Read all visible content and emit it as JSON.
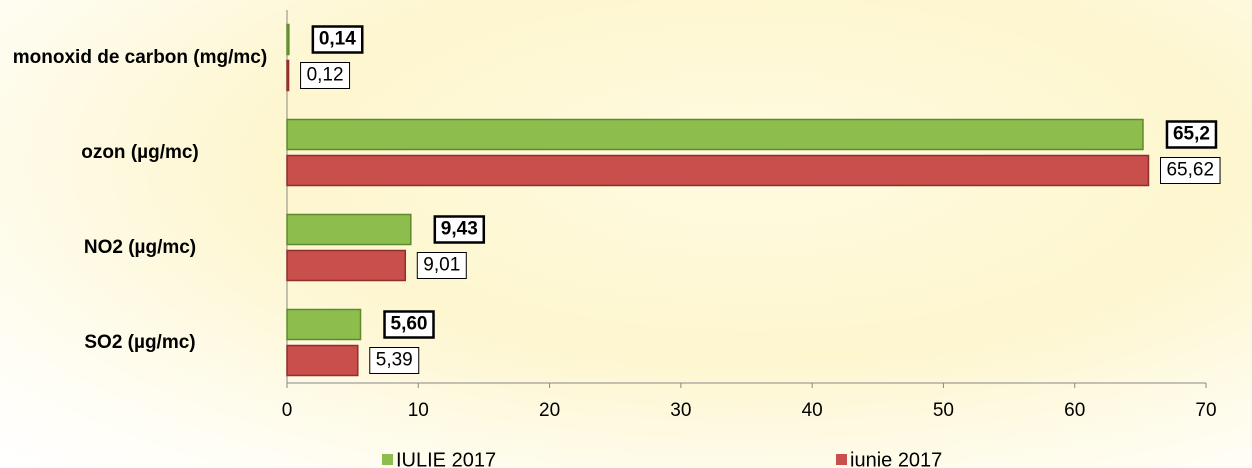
{
  "chart_data": {
    "type": "bar",
    "orientation": "horizontal",
    "categories": [
      "monoxid de carbon (mg/mc)",
      "ozon (µg/mc)",
      "NO2 (µg/mc)",
      "SO2 (µg/mc)"
    ],
    "series": [
      {
        "name": "IULIE 2017",
        "color": "#8dbd4c",
        "values": [
          0.14,
          65.2,
          9.43,
          5.6
        ],
        "value_labels": [
          "0,14",
          "65,2",
          "9,43",
          "5,60"
        ]
      },
      {
        "name": "iunie 2017",
        "color": "#c94f4d",
        "values": [
          0.12,
          65.62,
          9.01,
          5.39
        ],
        "value_labels": [
          "0,12",
          "65,62",
          "9,01",
          "5,39"
        ]
      }
    ],
    "xlim": [
      0,
      70
    ],
    "xticks": [
      0,
      10,
      20,
      30,
      40,
      50,
      60,
      70
    ],
    "legend": "bottom"
  }
}
